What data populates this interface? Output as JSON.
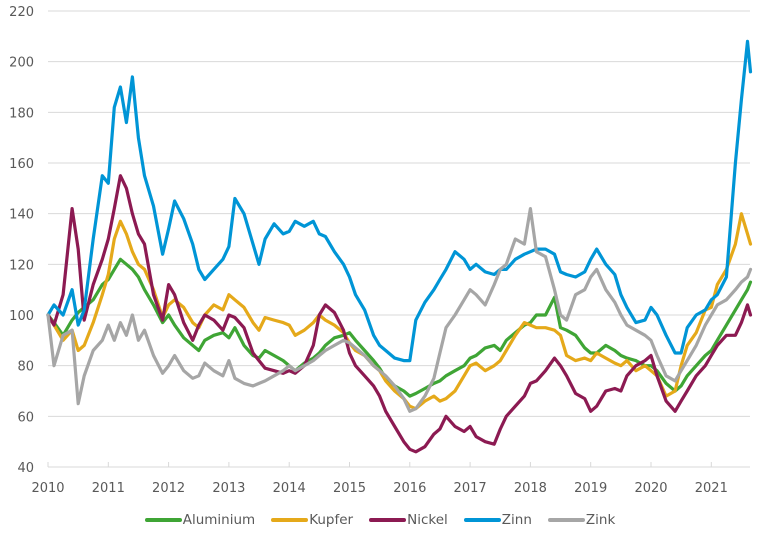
{
  "chart_data": {
    "type": "line",
    "title": "",
    "xlabel": "",
    "ylabel": "",
    "ylim": [
      40,
      220
    ],
    "xlim": [
      2010.0,
      2021.65
    ],
    "yticks": [
      "40",
      "60",
      "80",
      "100",
      "120",
      "140",
      "160",
      "180",
      "200",
      "220"
    ],
    "xticks": [
      "2010",
      "2011",
      "2012",
      "2013",
      "2014",
      "2015",
      "2016",
      "2017",
      "2018",
      "2019",
      "2020",
      "2021"
    ],
    "grid": "horizontal",
    "legend_position": "bottom",
    "x": [
      2010.0,
      2010.1,
      2010.25,
      2010.4,
      2010.5,
      2010.6,
      2010.75,
      2010.9,
      2011.0,
      2011.1,
      2011.2,
      2011.3,
      2011.4,
      2011.5,
      2011.6,
      2011.75,
      2011.9,
      2012.0,
      2012.1,
      2012.25,
      2012.4,
      2012.5,
      2012.6,
      2012.75,
      2012.9,
      2013.0,
      2013.1,
      2013.25,
      2013.4,
      2013.5,
      2013.6,
      2013.75,
      2013.9,
      2014.0,
      2014.1,
      2014.25,
      2014.4,
      2014.5,
      2014.6,
      2014.75,
      2014.9,
      2015.0,
      2015.1,
      2015.25,
      2015.4,
      2015.5,
      2015.6,
      2015.75,
      2015.9,
      2016.0,
      2016.1,
      2016.25,
      2016.4,
      2016.5,
      2016.6,
      2016.75,
      2016.9,
      2017.0,
      2017.1,
      2017.25,
      2017.4,
      2017.5,
      2017.6,
      2017.75,
      2017.9,
      2018.0,
      2018.1,
      2018.25,
      2018.4,
      2018.5,
      2018.6,
      2018.75,
      2018.9,
      2019.0,
      2019.1,
      2019.25,
      2019.4,
      2019.5,
      2019.6,
      2019.75,
      2019.9,
      2020.0,
      2020.1,
      2020.25,
      2020.4,
      2020.5,
      2020.6,
      2020.75,
      2020.9,
      2021.0,
      2021.1,
      2021.25,
      2021.4,
      2021.5,
      2021.6,
      2021.65
    ],
    "series": [
      {
        "name": "Aluminium",
        "color": "#3fa535",
        "values": [
          100,
          97,
          92,
          98,
          101,
          103,
          106,
          112,
          114,
          118,
          122,
          120,
          118,
          115,
          110,
          104,
          97,
          100,
          96,
          91,
          88,
          86,
          90,
          92,
          93,
          91,
          95,
          88,
          84,
          83,
          86,
          84,
          82,
          80,
          78,
          81,
          83,
          85,
          88,
          91,
          92,
          93,
          90,
          86,
          82,
          79,
          75,
          72,
          70,
          68,
          69,
          71,
          73,
          74,
          76,
          78,
          80,
          83,
          84,
          87,
          88,
          86,
          90,
          93,
          96,
          97,
          100,
          100,
          107,
          95,
          94,
          92,
          87,
          85,
          85,
          88,
          86,
          84,
          83,
          82,
          80,
          80,
          78,
          73,
          70,
          72,
          76,
          80,
          84,
          86,
          90,
          96,
          102,
          106,
          110,
          113
        ]
      },
      {
        "name": "Kupfer",
        "color": "#e5a91a",
        "values": [
          100,
          96,
          90,
          94,
          86,
          88,
          97,
          108,
          116,
          130,
          137,
          132,
          125,
          120,
          118,
          110,
          99,
          104,
          106,
          103,
          97,
          95,
          100,
          104,
          102,
          108,
          106,
          103,
          97,
          94,
          99,
          98,
          97,
          96,
          92,
          94,
          97,
          100,
          98,
          96,
          93,
          89,
          86,
          84,
          80,
          78,
          74,
          70,
          67,
          64,
          63,
          66,
          68,
          66,
          67,
          70,
          76,
          80,
          81,
          78,
          80,
          82,
          86,
          92,
          97,
          96,
          95,
          95,
          94,
          92,
          84,
          82,
          83,
          82,
          85,
          83,
          81,
          80,
          82,
          78,
          80,
          78,
          76,
          68,
          70,
          80,
          88,
          93,
          102,
          103,
          112,
          118,
          128,
          140,
          132,
          128
        ]
      },
      {
        "name": "Nickel",
        "color": "#8c1a52",
        "values": [
          100,
          96,
          108,
          142,
          126,
          98,
          112,
          122,
          130,
          142,
          155,
          150,
          140,
          132,
          128,
          108,
          98,
          112,
          108,
          97,
          90,
          96,
          100,
          98,
          94,
          100,
          99,
          95,
          85,
          82,
          79,
          78,
          77,
          78,
          77,
          80,
          88,
          100,
          104,
          101,
          94,
          85,
          80,
          76,
          72,
          68,
          62,
          56,
          50,
          47,
          46,
          48,
          53,
          55,
          60,
          56,
          54,
          56,
          52,
          50,
          49,
          55,
          60,
          64,
          68,
          73,
          74,
          78,
          83,
          80,
          76,
          69,
          67,
          62,
          64,
          70,
          71,
          70,
          76,
          80,
          82,
          84,
          76,
          66,
          62,
          66,
          70,
          76,
          80,
          84,
          88,
          92,
          92,
          97,
          104,
          100
        ]
      },
      {
        "name": "Zinn",
        "color": "#0095d6",
        "values": [
          100,
          104,
          100,
          110,
          96,
          102,
          130,
          155,
          152,
          182,
          190,
          176,
          194,
          170,
          155,
          143,
          124,
          134,
          145,
          138,
          128,
          118,
          114,
          118,
          122,
          127,
          146,
          140,
          128,
          120,
          130,
          136,
          132,
          133,
          137,
          135,
          137,
          132,
          131,
          125,
          120,
          115,
          108,
          102,
          92,
          88,
          86,
          83,
          82,
          82,
          98,
          105,
          110,
          114,
          118,
          125,
          122,
          118,
          120,
          117,
          116,
          118,
          118,
          122,
          124,
          125,
          126,
          126,
          124,
          117,
          116,
          115,
          117,
          122,
          126,
          120,
          116,
          108,
          103,
          97,
          98,
          103,
          100,
          92,
          85,
          85,
          95,
          100,
          102,
          106,
          108,
          115,
          160,
          185,
          208,
          196
        ]
      },
      {
        "name": "Zink",
        "color": "#a6a6a6",
        "values": [
          100,
          80,
          92,
          94,
          65,
          76,
          86,
          90,
          96,
          90,
          97,
          92,
          100,
          90,
          94,
          84,
          77,
          80,
          84,
          78,
          75,
          76,
          81,
          78,
          76,
          82,
          75,
          73,
          72,
          73,
          74,
          76,
          78,
          80,
          78,
          80,
          82,
          84,
          86,
          88,
          90,
          89,
          87,
          84,
          80,
          78,
          76,
          72,
          67,
          62,
          63,
          68,
          75,
          85,
          95,
          100,
          106,
          110,
          108,
          104,
          112,
          118,
          120,
          130,
          128,
          142,
          125,
          123,
          110,
          100,
          98,
          108,
          110,
          115,
          118,
          110,
          105,
          100,
          96,
          94,
          92,
          90,
          84,
          76,
          74,
          78,
          82,
          88,
          96,
          100,
          104,
          106,
          110,
          113,
          115,
          118
        ]
      }
    ]
  }
}
